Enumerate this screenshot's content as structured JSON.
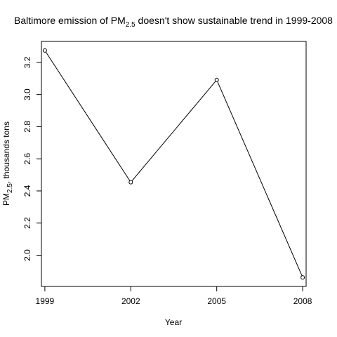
{
  "chart_data": {
    "type": "line",
    "title": {
      "prefix": "Baltimore emission of PM",
      "subscript": "2.5",
      "suffix": " doesn't show sustainable trend in 1999-2008"
    },
    "xlabel": "Year",
    "ylabel": {
      "prefix": "PM",
      "subscript": "2.5",
      "suffix": ", thousands tons"
    },
    "x": [
      1999,
      2002,
      2005,
      2008
    ],
    "y": [
      3.274,
      2.454,
      3.091,
      1.862
    ],
    "xticks": [
      1999,
      2002,
      2005,
      2008
    ],
    "yticks": [
      2.0,
      2.2,
      2.4,
      2.6,
      2.8,
      3.0,
      3.2
    ],
    "ytick_labels": [
      "2.0",
      "2.2",
      "2.4",
      "2.6",
      "2.8",
      "3.0",
      "3.2"
    ],
    "xlim": [
      1998.88,
      2008.12
    ],
    "ylim": [
      1.8055,
      3.3305
    ],
    "grid": false,
    "marker": "open-circle"
  }
}
